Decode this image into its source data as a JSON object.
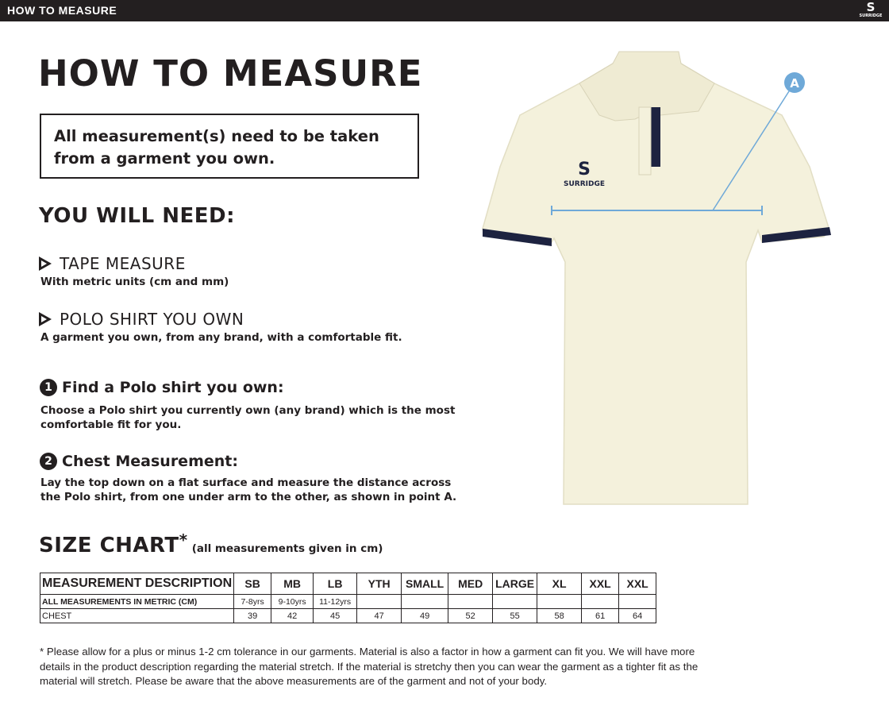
{
  "header": {
    "title": "HOW TO MEASURE",
    "brand": "SURRIDGE"
  },
  "main": {
    "title": "HOW TO MEASURE",
    "notice": "All measurement(s) need to be taken from a garment you own.",
    "you_will_need": {
      "heading": "YOU WILL NEED:",
      "items": [
        {
          "label": "TAPE MEASURE",
          "desc": "With metric units (cm and mm)"
        },
        {
          "label": "POLO SHIRT YOU OWN",
          "desc": "A garment you own, from any brand, with a comfortable fit."
        }
      ]
    },
    "steps": [
      {
        "num": "1",
        "title": "Find a Polo shirt you own:",
        "desc": "Choose a Polo shirt you currently own (any brand) which is the most comfortable fit for you."
      },
      {
        "num": "2",
        "title": "Chest Measurement:",
        "desc": "Lay the top down on a flat surface and measure the distance across the Polo shirt, from one under arm to the other, as shown in point A."
      }
    ],
    "illustration": {
      "marker": "A",
      "shirt_logo": "SURRIDGE",
      "colors": {
        "shirt": "#f4f1dc",
        "trim": "#1d2340",
        "measure_line": "#6fa9d8"
      }
    }
  },
  "size_chart": {
    "title": "SIZE CHART",
    "asterisk": "*",
    "subtitle": "(all measurements given in cm)",
    "headers": [
      "MEASUREMENT DESCRIPTION",
      "SB",
      "MB",
      "LB",
      "YTH",
      "SMALL",
      "MED",
      "LARGE",
      "XL",
      "XXL",
      "XXL"
    ],
    "rows": [
      [
        "ALL MEASUREMENTS IN METRIC (CM)",
        "7-8yrs",
        "9-10yrs",
        "11-12yrs",
        "",
        "",
        "",
        "",
        "",
        "",
        ""
      ],
      [
        "CHEST",
        "39",
        "42",
        "45",
        "47",
        "49",
        "52",
        "55",
        "58",
        "61",
        "64"
      ]
    ],
    "footnote": "* Please allow for a plus or minus 1-2 cm tolerance in our garments. Material is also a factor in how a garment can fit you. We will have more details in the product description regarding the material stretch.  If the material is stretchy then you can wear the garment as a tighter fit as the material will stretch.  Please be aware that the above measurements are of the garment and not of your body."
  }
}
